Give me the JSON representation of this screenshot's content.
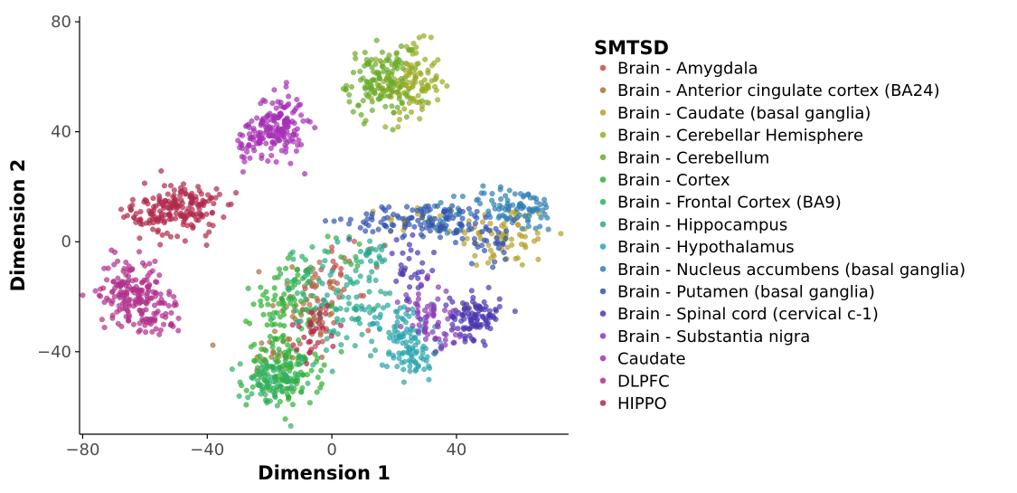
{
  "chart_data": {
    "type": "scatter",
    "xlabel": "Dimension 1",
    "ylabel": "Dimension 2",
    "xlim": [
      -81,
      76
    ],
    "ylim": [
      -70,
      82
    ],
    "x_ticks": [
      -80,
      -40,
      0,
      40
    ],
    "y_ticks": [
      -40,
      0,
      40,
      80
    ],
    "x_tick_labels": [
      "−80",
      "−40",
      "0",
      "40"
    ],
    "y_tick_labels": [
      "−40",
      "0",
      "40",
      "80"
    ],
    "grid": false,
    "legend": {
      "title": "SMTSD",
      "placement": "right"
    },
    "series": [
      {
        "name": "Brain - Amygdala",
        "color": "#c0504d",
        "clusters": [
          {
            "x": -5,
            "y": -25,
            "sx": 6,
            "sy": 10,
            "n": 35
          },
          {
            "x": 8,
            "y": -10,
            "sx": 6,
            "sy": 6,
            "n": 20
          }
        ]
      },
      {
        "name": "Brain - Anterior cingulate cortex (BA24)",
        "color": "#a8703a",
        "clusters": [
          {
            "x": -8,
            "y": -20,
            "sx": 6,
            "sy": 8,
            "n": 40
          },
          {
            "x": -18,
            "y": -40,
            "sx": 5,
            "sy": 5,
            "n": 20
          }
        ]
      },
      {
        "name": "Brain - Caudate (basal ganglia)",
        "color": "#b5a02a",
        "clusters": [
          {
            "x": 55,
            "y": 2,
            "sx": 8,
            "sy": 6,
            "n": 70
          },
          {
            "x": 28,
            "y": 8,
            "sx": 6,
            "sy": 3,
            "n": 20
          }
        ]
      },
      {
        "name": "Brain - Cerebellar Hemisphere",
        "color": "#9aaa22",
        "clusters": [
          {
            "x": 25,
            "y": 58,
            "sx": 5,
            "sy": 7,
            "n": 120
          }
        ]
      },
      {
        "name": "Brain - Cerebellum",
        "color": "#6aab2a",
        "clusters": [
          {
            "x": 15,
            "y": 58,
            "sx": 5,
            "sy": 6,
            "n": 120
          }
        ]
      },
      {
        "name": "Brain - Cortex",
        "color": "#2fb033",
        "clusters": [
          {
            "x": -15,
            "y": -48,
            "sx": 6,
            "sy": 6,
            "n": 130
          },
          {
            "x": -15,
            "y": -22,
            "sx": 5,
            "sy": 8,
            "n": 70
          },
          {
            "x": 5,
            "y": -3,
            "sx": 3,
            "sy": 3,
            "n": 10
          }
        ]
      },
      {
        "name": "Brain - Frontal Cortex (BA9)",
        "color": "#2fae67",
        "clusters": [
          {
            "x": -20,
            "y": -52,
            "sx": 5,
            "sy": 5,
            "n": 60
          },
          {
            "x": -10,
            "y": -15,
            "sx": 5,
            "sy": 6,
            "n": 30
          }
        ]
      },
      {
        "name": "Brain - Hippocampus",
        "color": "#2aa98c",
        "clusters": [
          {
            "x": 5,
            "y": -25,
            "sx": 7,
            "sy": 9,
            "n": 80
          },
          {
            "x": 12,
            "y": -5,
            "sx": 4,
            "sy": 5,
            "n": 25
          }
        ]
      },
      {
        "name": "Brain - Hypothalamus",
        "color": "#2aa4ae",
        "clusters": [
          {
            "x": 26,
            "y": -40,
            "sx": 4,
            "sy": 5,
            "n": 70
          },
          {
            "x": 22,
            "y": -30,
            "sx": 5,
            "sy": 4,
            "n": 40
          }
        ]
      },
      {
        "name": "Brain - Nucleus accumbens (basal ganglia)",
        "color": "#2f7fb3",
        "clusters": [
          {
            "x": 58,
            "y": 12,
            "sx": 8,
            "sy": 4,
            "n": 90
          },
          {
            "x": 38,
            "y": 8,
            "sx": 5,
            "sy": 3,
            "n": 20
          }
        ]
      },
      {
        "name": "Brain - Putamen (basal ganglia)",
        "color": "#3355b0",
        "clusters": [
          {
            "x": 30,
            "y": 8,
            "sx": 12,
            "sy": 3,
            "n": 110
          },
          {
            "x": 50,
            "y": 0,
            "sx": 6,
            "sy": 4,
            "n": 30
          }
        ]
      },
      {
        "name": "Brain - Spinal cord (cervical c-1)",
        "color": "#4a36b0",
        "clusters": [
          {
            "x": 46,
            "y": -27,
            "sx": 4,
            "sy": 4,
            "n": 100
          },
          {
            "x": 25,
            "y": -12,
            "sx": 4,
            "sy": 6,
            "n": 30
          }
        ]
      },
      {
        "name": "Brain - Substantia nigra",
        "color": "#8a3ab8",
        "clusters": [
          {
            "x": 30,
            "y": -25,
            "sx": 4,
            "sy": 5,
            "n": 45
          },
          {
            "x": 35,
            "y": -33,
            "sx": 4,
            "sy": 3,
            "n": 20
          }
        ]
      },
      {
        "name": "Caudate",
        "color": "#a62fb5",
        "clusters": [
          {
            "x": -17,
            "y": 42,
            "sx": 4,
            "sy": 6,
            "n": 150
          },
          {
            "x": -25,
            "y": 36,
            "sx": 3,
            "sy": 4,
            "n": 40
          }
        ]
      },
      {
        "name": "DLPFC",
        "color": "#b02f8c",
        "clusters": [
          {
            "x": -65,
            "y": -18,
            "sx": 5,
            "sy": 6,
            "n": 140
          },
          {
            "x": -58,
            "y": -25,
            "sx": 5,
            "sy": 5,
            "n": 60
          }
        ]
      },
      {
        "name": "HIPPO",
        "color": "#b02a4a",
        "clusters": [
          {
            "x": -48,
            "y": 12,
            "sx": 6,
            "sy": 5,
            "n": 170
          },
          {
            "x": -62,
            "y": 10,
            "sx": 3,
            "sy": 3,
            "n": 25
          },
          {
            "x": -5,
            "y": -32,
            "sx": 4,
            "sy": 5,
            "n": 30
          }
        ]
      }
    ]
  }
}
